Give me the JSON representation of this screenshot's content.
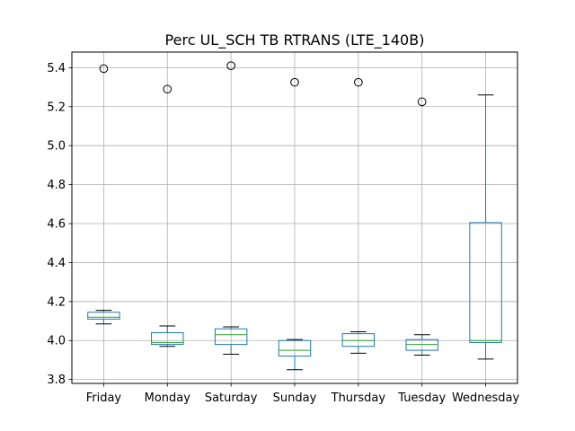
{
  "chart_data": {
    "type": "box",
    "title": "Perc UL_SCH TB RTRANS (LTE_140B)",
    "xlabel": "",
    "ylabel": "",
    "ylim": [
      3.78,
      5.48
    ],
    "yticks": [
      3.8,
      4.0,
      4.2,
      4.4,
      4.6,
      4.8,
      5.0,
      5.2,
      5.4
    ],
    "grid": true,
    "colors": {
      "box": "#1f77b4",
      "median": "#2ca02c",
      "whisker": "#000000",
      "grid": "#b0b0b0",
      "flier": "#000000"
    },
    "categories": [
      "Friday",
      "Monday",
      "Saturday",
      "Sunday",
      "Thursday",
      "Tuesday",
      "Wednesday"
    ],
    "boxes": [
      {
        "category": "Friday",
        "whislo": 4.085,
        "q1": 4.11,
        "med": 4.12,
        "q3": 4.145,
        "whishi": 4.155,
        "fliers": [
          5.395
        ]
      },
      {
        "category": "Monday",
        "whislo": 3.97,
        "q1": 3.98,
        "med": 3.99,
        "q3": 4.04,
        "whishi": 4.075,
        "fliers": [
          5.29
        ]
      },
      {
        "category": "Saturday",
        "whislo": 3.93,
        "q1": 3.98,
        "med": 4.03,
        "q3": 4.06,
        "whishi": 4.07,
        "fliers": [
          5.41
        ]
      },
      {
        "category": "Sunday",
        "whislo": 3.85,
        "q1": 3.92,
        "med": 3.95,
        "q3": 4.0,
        "whishi": 4.005,
        "fliers": [
          5.325
        ]
      },
      {
        "category": "Thursday",
        "whislo": 3.935,
        "q1": 3.97,
        "med": 4.0,
        "q3": 4.035,
        "whishi": 4.045,
        "fliers": [
          5.325
        ]
      },
      {
        "category": "Tuesday",
        "whislo": 3.925,
        "q1": 3.95,
        "med": 3.98,
        "q3": 4.005,
        "whishi": 4.03,
        "fliers": [
          5.225
        ]
      },
      {
        "category": "Wednesday",
        "whislo": 3.905,
        "q1": 3.99,
        "med": 4.0,
        "q3": 4.605,
        "whishi": 5.26,
        "fliers": []
      }
    ]
  }
}
